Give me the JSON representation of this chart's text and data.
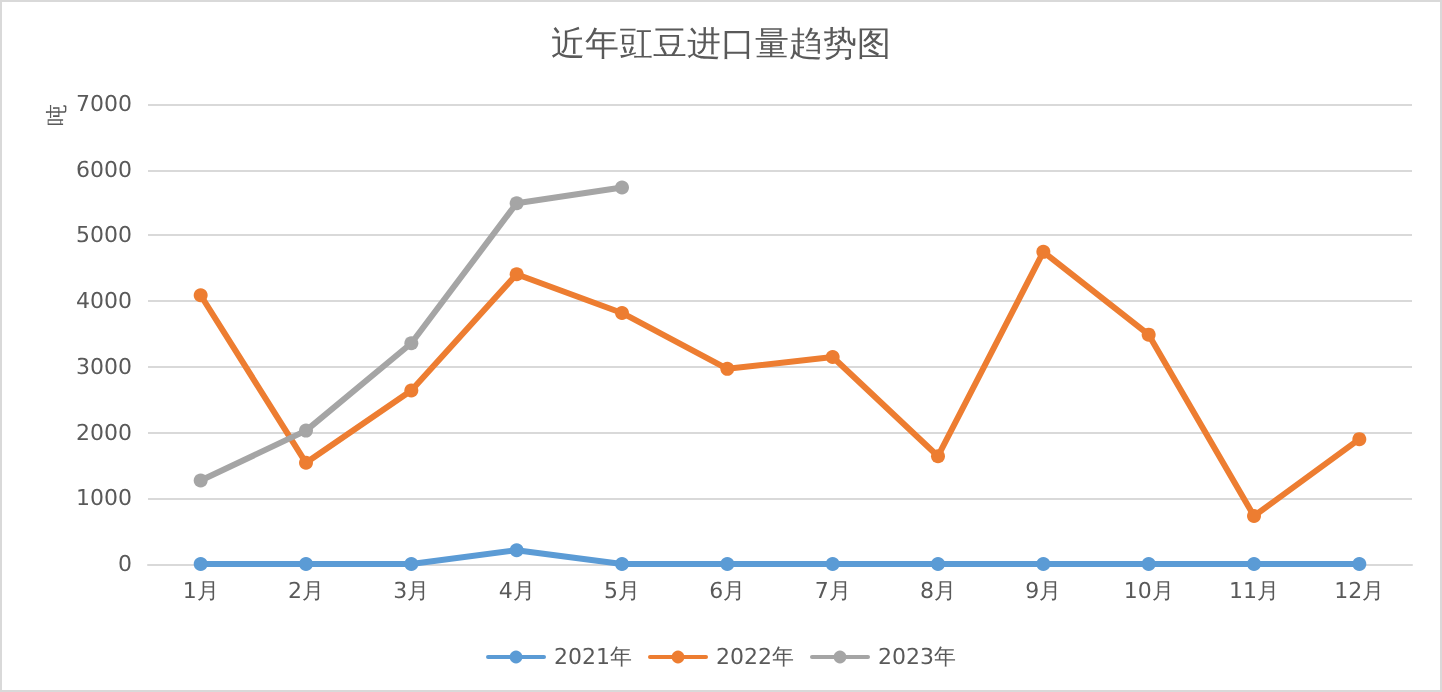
{
  "chart_data": {
    "type": "line",
    "title": "近年豇豆进口量趋势图",
    "ylabel": "吨",
    "categories": [
      "1月",
      "2月",
      "3月",
      "4月",
      "5月",
      "6月",
      "7月",
      "8月",
      "9月",
      "10月",
      "11月",
      "12月"
    ],
    "series": [
      {
        "name": "2021年",
        "color": "#5b9bd5",
        "values": [
          0,
          0,
          0,
          210,
          0,
          0,
          0,
          0,
          0,
          0,
          0,
          0
        ]
      },
      {
        "name": "2022年",
        "color": "#ed7d31",
        "values": [
          4090,
          1540,
          2640,
          4410,
          3820,
          2970,
          3150,
          1640,
          4750,
          3490,
          730,
          1900
        ]
      },
      {
        "name": "2023年",
        "color": "#a5a5a5",
        "values": [
          1270,
          2030,
          3360,
          5490,
          5730,
          null,
          null,
          null,
          null,
          null,
          null,
          null
        ]
      }
    ],
    "ylim": [
      0,
      7000
    ],
    "yticks": [
      0,
      1000,
      2000,
      3000,
      4000,
      5000,
      6000,
      7000
    ],
    "grid": "y",
    "legend": "bottom",
    "marker": "circle",
    "line_style": "solid"
  }
}
